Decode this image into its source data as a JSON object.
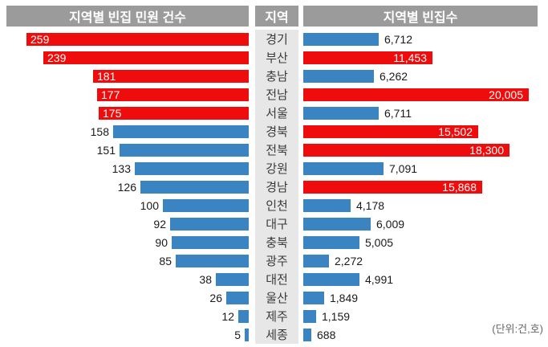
{
  "headers": {
    "left": "지역별 빈집 민원 건수",
    "middle": "지역",
    "right": "지역별 빈집수"
  },
  "colors": {
    "highlight_red": "#ee0c0c",
    "base_blue": "#3b84c2",
    "header_bg": "#9b9b9b",
    "region_column_bg": "#e7e7e7"
  },
  "chart_data": {
    "type": "bar",
    "orientation": "horizontal",
    "layout": "butterfly",
    "unit_note": "(단위:건,호)",
    "categories": [
      "경기",
      "부산",
      "충남",
      "전남",
      "서울",
      "경북",
      "전북",
      "강원",
      "경남",
      "인천",
      "대구",
      "충북",
      "광주",
      "대전",
      "울산",
      "제주",
      "세종"
    ],
    "series": [
      {
        "name": "지역별 빈집 민원 건수",
        "direction": "left",
        "values": [
          259,
          239,
          181,
          177,
          175,
          158,
          151,
          133,
          126,
          100,
          92,
          90,
          85,
          38,
          26,
          12,
          5
        ],
        "xlim": [
          0,
          259
        ],
        "highlighted_categories": [
          "경기",
          "부산",
          "충남",
          "전남",
          "서울"
        ],
        "bar_colors": [
          "red",
          "red",
          "red",
          "red",
          "red",
          "blue",
          "blue",
          "blue",
          "blue",
          "blue",
          "blue",
          "blue",
          "blue",
          "blue",
          "blue",
          "blue",
          "blue"
        ]
      },
      {
        "name": "지역별 빈집수",
        "direction": "right",
        "values": [
          6712,
          11453,
          6262,
          20005,
          6711,
          15502,
          18300,
          7091,
          15868,
          4178,
          6009,
          5005,
          2272,
          4991,
          1849,
          1159,
          688
        ],
        "xlim": [
          0,
          20005
        ],
        "highlighted_categories": [
          "부산",
          "전남",
          "경북",
          "전북",
          "경남"
        ],
        "bar_colors": [
          "blue",
          "red",
          "blue",
          "red",
          "blue",
          "red",
          "red",
          "blue",
          "red",
          "blue",
          "blue",
          "blue",
          "blue",
          "blue",
          "blue",
          "blue",
          "blue"
        ]
      }
    ]
  }
}
